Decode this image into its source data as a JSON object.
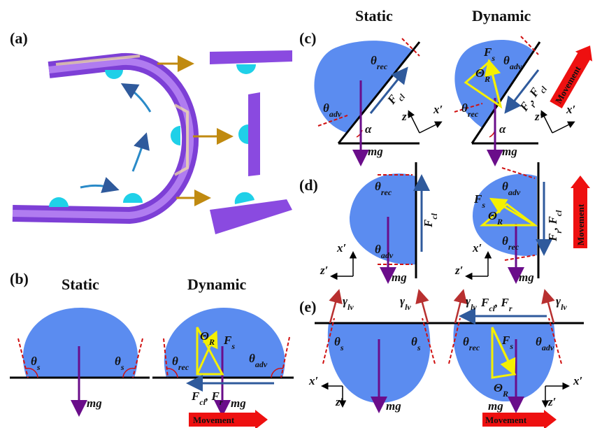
{
  "panel_a": {
    "label": "(a)"
  },
  "panel_b": {
    "label": "(b)",
    "static": {
      "title": "Static",
      "labels": [
        [
          "θ",
          "s"
        ],
        [
          "θ",
          "s"
        ],
        [
          "mg"
        ]
      ]
    },
    "dynamic": {
      "title": "Dynamic",
      "labels": [
        [
          "Θ",
          "R"
        ],
        [
          "F",
          "s"
        ],
        [
          "θ",
          "rec"
        ],
        [
          "θ",
          "adv"
        ],
        [
          "F",
          "cl",
          ", F",
          "r"
        ],
        [
          "mg"
        ]
      ],
      "movement": "Movement"
    }
  },
  "panel_c": {
    "label": "(c)",
    "static": {
      "title": "Static",
      "labels": [
        [
          "θ",
          "rec"
        ],
        [
          "F",
          "cl"
        ],
        [
          "θ",
          "adv"
        ],
        [
          "α"
        ],
        [
          "mg"
        ],
        [
          "z′"
        ],
        [
          "x′"
        ]
      ]
    },
    "dynamic": {
      "title": "Dynamic",
      "labels": [
        [
          "F",
          "s"
        ],
        [
          "θ",
          "adv"
        ],
        [
          "Θ",
          "R"
        ],
        [
          "F",
          "r",
          ", F",
          "cl"
        ],
        [
          "θ",
          "rec"
        ],
        [
          "α"
        ],
        [
          "mg"
        ],
        [
          "z′"
        ],
        [
          "x′"
        ]
      ],
      "movement": "Movement"
    }
  },
  "panel_d": {
    "label": "(d)",
    "static": {
      "labels": [
        [
          "θ",
          "rec"
        ],
        [
          "F",
          "cl"
        ],
        [
          "θ",
          "adv"
        ],
        [
          "mg"
        ],
        [
          "x′"
        ],
        [
          "z′"
        ]
      ]
    },
    "dynamic": {
      "labels": [
        [
          "θ",
          "adv"
        ],
        [
          "F",
          "s"
        ],
        [
          "Θ",
          "R"
        ],
        [
          "F",
          "r",
          ", F",
          "cl"
        ],
        [
          "θ",
          "rec"
        ],
        [
          "mg"
        ],
        [
          "x′"
        ],
        [
          "z′"
        ]
      ],
      "movement": "Movement"
    }
  },
  "panel_e": {
    "label": "(e)",
    "static": {
      "labels": [
        [
          "γ",
          "lv"
        ],
        [
          "γ",
          "lv"
        ],
        [
          "θ",
          "s"
        ],
        [
          "θ",
          "s"
        ],
        [
          "mg"
        ],
        [
          "x′"
        ],
        [
          "z′"
        ]
      ]
    },
    "dynamic": {
      "labels": [
        [
          "γ",
          "lv"
        ],
        [
          "γ",
          "lv"
        ],
        [
          "F",
          "cl",
          ", F",
          "r"
        ],
        [
          "θ",
          "rec"
        ],
        [
          "F",
          "s"
        ],
        [
          "θ",
          "adv"
        ],
        [
          "Θ",
          "R"
        ],
        [
          "mg"
        ],
        [
          "x′"
        ],
        [
          "z′"
        ]
      ],
      "movement": "Movement"
    }
  }
}
